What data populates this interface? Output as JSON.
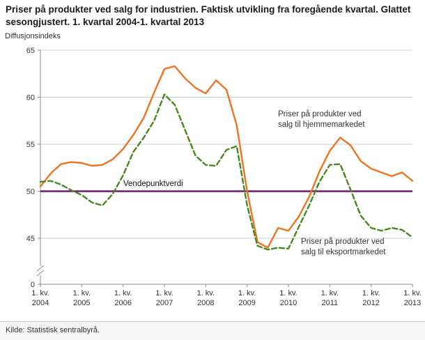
{
  "title": "Priser på produkter ved salg for industrien. Faktisk utvikling fra foregående kvartal. Glattet sesongjustert. 1. kvartal 2004-1. kvartal 2013",
  "source": "Kilde: Statistisk sentralbyrå.",
  "chart_data": {
    "type": "line",
    "ylabel": "Diffusjonsindeks",
    "ylim": [
      43,
      65
    ],
    "yticks": [
      45,
      50,
      55,
      60,
      65
    ],
    "zero_tick_label": "0",
    "y_axis_break_to_zero": true,
    "grid": "horizontal",
    "legend_position": "inline-annotations",
    "x_unit": "quarter",
    "x_count": 37,
    "xticks": [
      {
        "index": 0,
        "line1": "1. kv.",
        "line2": "2004"
      },
      {
        "index": 4,
        "line1": "1. kv.",
        "line2": "2005"
      },
      {
        "index": 8,
        "line1": "1. kv.",
        "line2": "2006"
      },
      {
        "index": 12,
        "line1": "1. kv.",
        "line2": "2007"
      },
      {
        "index": 16,
        "line1": "1. kv.",
        "line2": "2008"
      },
      {
        "index": 20,
        "line1": "1. kv.",
        "line2": "2009"
      },
      {
        "index": 24,
        "line1": "1. kv.",
        "line2": "2010"
      },
      {
        "index": 28,
        "line1": "1. kv.",
        "line2": "2011"
      },
      {
        "index": 32,
        "line1": "1. kv.",
        "line2": "2012"
      },
      {
        "index": 36,
        "line1": "1. kv.",
        "line2": "2013"
      }
    ],
    "series": [
      {
        "name": "Priser på produkter ved salg til hjemmemarkedet",
        "color": "#ee7220",
        "style": "solid",
        "values": [
          50.5,
          51.9,
          52.9,
          53.1,
          53.0,
          52.7,
          52.8,
          53.4,
          54.5,
          56.0,
          57.8,
          60.5,
          63.0,
          63.3,
          62.0,
          61.0,
          60.4,
          61.8,
          60.8,
          57.0,
          50.0,
          44.6,
          44.0,
          46.1,
          45.8,
          47.3,
          49.4,
          52.1,
          54.3,
          55.7,
          54.9,
          53.2,
          52.4,
          52.0,
          51.6,
          52.0,
          51.1
        ]
      },
      {
        "name": "Priser på produkter ved salg til eksportmarkedet",
        "color": "#468a1d",
        "style": "dashed",
        "values": [
          51.0,
          51.1,
          50.7,
          50.1,
          49.6,
          48.8,
          48.5,
          49.7,
          51.7,
          54.2,
          55.7,
          57.5,
          60.3,
          59.2,
          56.5,
          53.8,
          52.8,
          52.7,
          54.4,
          54.8,
          48.5,
          44.2,
          43.8,
          44.0,
          43.9,
          46.2,
          48.5,
          51.0,
          52.8,
          52.9,
          50.2,
          47.4,
          46.1,
          45.8,
          46.1,
          45.9,
          45.1
        ]
      }
    ],
    "reference_line": {
      "value": 50,
      "label": "Vendepunktverdi",
      "color": "#76147e"
    },
    "annotations": [
      {
        "target_series": "hjemmemarkedet",
        "lines": [
          "Priser på produkter ved",
          "salg til hjemmemarkedet"
        ]
      },
      {
        "target_series": "eksportmarkedet",
        "lines": [
          "Priser på produkter ved",
          "salg til eksportmarkedet"
        ]
      }
    ]
  }
}
